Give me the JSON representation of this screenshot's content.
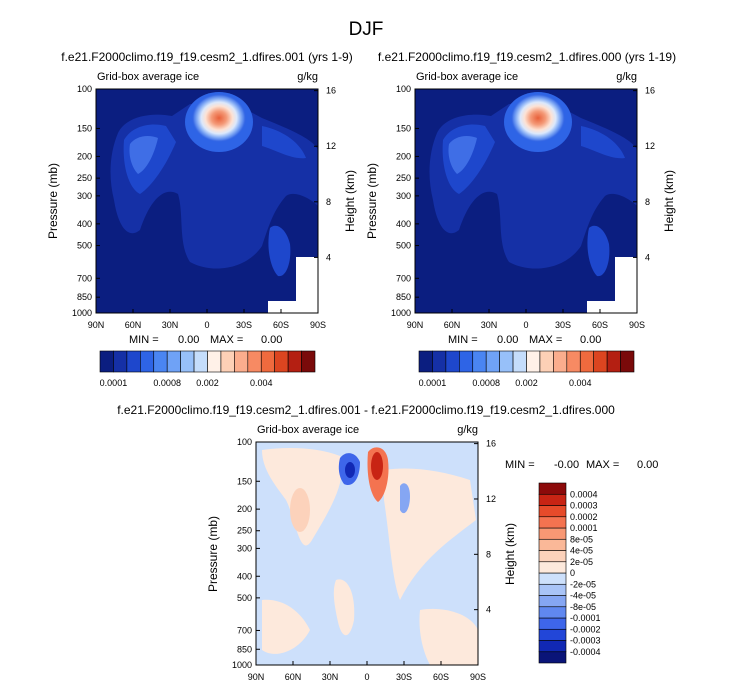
{
  "figure_title": "DJF",
  "chart_data": [
    {
      "type": "heatmap",
      "title": "f.e21.F2000climo.f19_f19.cesm2_1.dfires.001 (yrs 1-9)",
      "left_string": "Grid-box average ice",
      "right_string": "g/kg",
      "xlabel": "",
      "ylabel": "Pressure (mb)",
      "y2label": "Height (km)",
      "x_ticks": [
        "90N",
        "60N",
        "30N",
        "0",
        "30S",
        "60S",
        "90S"
      ],
      "y_ticks": [
        "100",
        "150",
        "200",
        "250",
        "300",
        "400",
        "500",
        "700",
        "850",
        "1000"
      ],
      "y2_ticks": [
        "16",
        "12",
        "8",
        "4"
      ],
      "stats": {
        "min_label": "MIN =",
        "min": "0.00",
        "max_label": "MAX =",
        "max": "0.00"
      },
      "field": "plume",
      "colorbar": {
        "orientation": "horizontal",
        "colors": [
          "#0b1e80",
          "#1530a6",
          "#1e47cc",
          "#2e64e6",
          "#4a85f2",
          "#6fa2f6",
          "#97c0f9",
          "#c5ddfb",
          "#fff1e8",
          "#fdd0b6",
          "#fbad8d",
          "#f78a63",
          "#ef6a3e",
          "#dc4520",
          "#b41f12",
          "#7a0a0a"
        ],
        "labels": [
          "0.0001",
          "0.0008",
          "0.002",
          "0.004"
        ]
      }
    },
    {
      "type": "heatmap",
      "title": "f.e21.F2000climo.f19_f19.cesm2_1.dfires.000 (yrs 1-19)",
      "left_string": "Grid-box average ice",
      "right_string": "g/kg",
      "xlabel": "",
      "ylabel": "Pressure (mb)",
      "y2label": "Height (km)",
      "x_ticks": [
        "90N",
        "60N",
        "30N",
        "0",
        "30S",
        "60S",
        "90S"
      ],
      "y_ticks": [
        "100",
        "150",
        "200",
        "250",
        "300",
        "400",
        "500",
        "700",
        "850",
        "1000"
      ],
      "y2_ticks": [
        "16",
        "12",
        "8",
        "4"
      ],
      "stats": {
        "min_label": "MIN =",
        "min": "0.00",
        "max_label": "MAX =",
        "max": "0.00"
      },
      "field": "plume",
      "colorbar": {
        "orientation": "horizontal",
        "colors": [
          "#0b1e80",
          "#1530a6",
          "#1e47cc",
          "#2e64e6",
          "#4a85f2",
          "#6fa2f6",
          "#97c0f9",
          "#c5ddfb",
          "#fff1e8",
          "#fdd0b6",
          "#fbad8d",
          "#f78a63",
          "#ef6a3e",
          "#dc4520",
          "#b41f12",
          "#7a0a0a"
        ],
        "labels": [
          "0.0001",
          "0.0008",
          "0.002",
          "0.004"
        ]
      }
    },
    {
      "type": "heatmap",
      "title": "f.e21.F2000climo.f19_f19.cesm2_1.dfires.001 - f.e21.F2000climo.f19_f19.cesm2_1.dfires.000",
      "left_string": "Grid-box average ice",
      "right_string": "g/kg",
      "xlabel": "",
      "ylabel": "Pressure (mb)",
      "y2label": "Height (km)",
      "x_ticks": [
        "90N",
        "60N",
        "30N",
        "0",
        "30S",
        "60S",
        "90S"
      ],
      "y_ticks": [
        "100",
        "150",
        "200",
        "250",
        "300",
        "400",
        "500",
        "700",
        "850",
        "1000"
      ],
      "y2_ticks": [
        "16",
        "12",
        "8",
        "4"
      ],
      "stats": {
        "min_label": "MIN =",
        "min": "-0.00",
        "max_label": "MAX =",
        "max": "0.00"
      },
      "field": "difference",
      "colorbar": {
        "orientation": "vertical",
        "colors": [
          "#0a1478",
          "#1128b4",
          "#2246d8",
          "#3e66ea",
          "#6088f0",
          "#85a6f3",
          "#a9c4f7",
          "#cde0fb",
          "#fde9dc",
          "#fcd2bb",
          "#fab898",
          "#f89874",
          "#f47350",
          "#e64b2a",
          "#c82414",
          "#8c0a0a"
        ],
        "labels": [
          "0.0004",
          "0.0003",
          "0.0002",
          "0.0001",
          "8e-05",
          "4e-05",
          "2e-05",
          "0",
          "-2e-05",
          "-4e-05",
          "-8e-05",
          "-0.0001",
          "-0.0002",
          "-0.0003",
          "-0.0004"
        ]
      }
    }
  ]
}
